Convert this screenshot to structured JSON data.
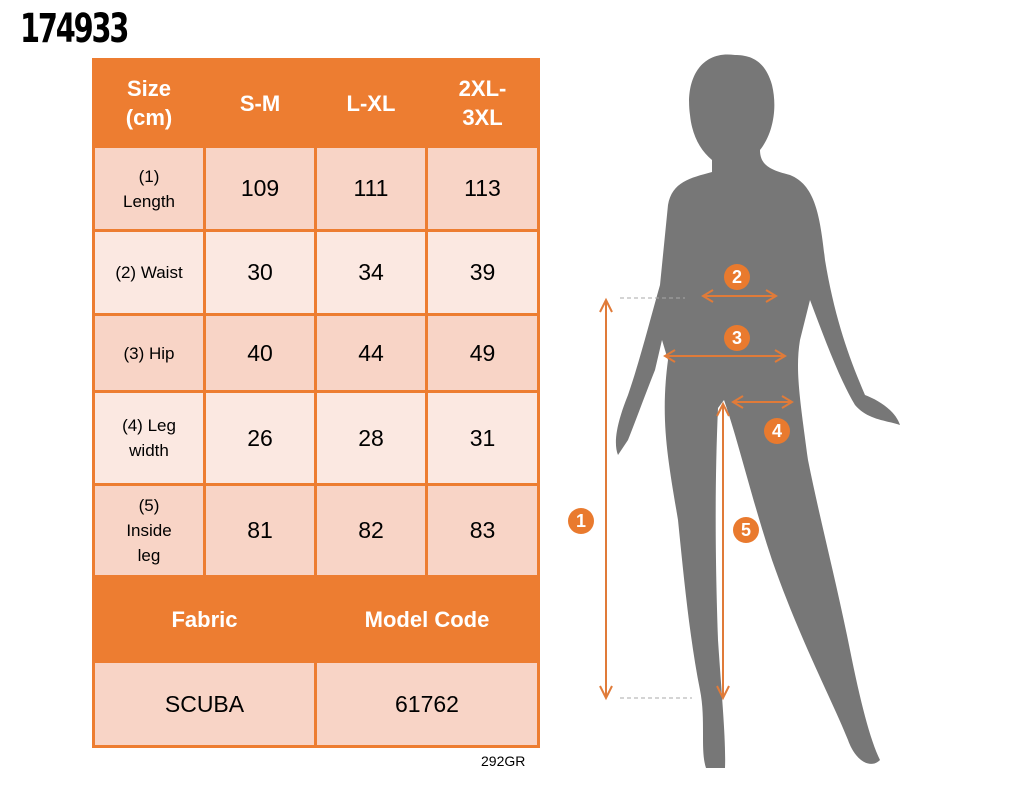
{
  "product_code": "174933",
  "table": {
    "headers": [
      "Size\n(cm)",
      "S-M",
      "L-XL",
      "2XL-3XL"
    ],
    "rows": [
      {
        "label": "(1) Length",
        "values": [
          "109",
          "111",
          "113"
        ]
      },
      {
        "label": "(2) Waist",
        "values": [
          "30",
          "34",
          "39"
        ]
      },
      {
        "label": "(3) Hip",
        "values": [
          "40",
          "44",
          "49"
        ]
      },
      {
        "label": "(4) Leg width",
        "values": [
          "26",
          "28",
          "31"
        ]
      },
      {
        "label": "(5) Inside leg",
        "values": [
          "81",
          "82",
          "83"
        ]
      }
    ],
    "fabric_header": "Fabric",
    "model_code_header": "Model Code",
    "fabric": "SCUBA",
    "model_code": "61762"
  },
  "footer_code": "292GR",
  "figure": {
    "markers": [
      "1",
      "2",
      "3",
      "4",
      "5"
    ]
  },
  "colors": {
    "accent": "#ED7D31",
    "row_dark": "#F8D4C6",
    "row_light": "#FBE8E1",
    "silhouette": "#777777"
  }
}
